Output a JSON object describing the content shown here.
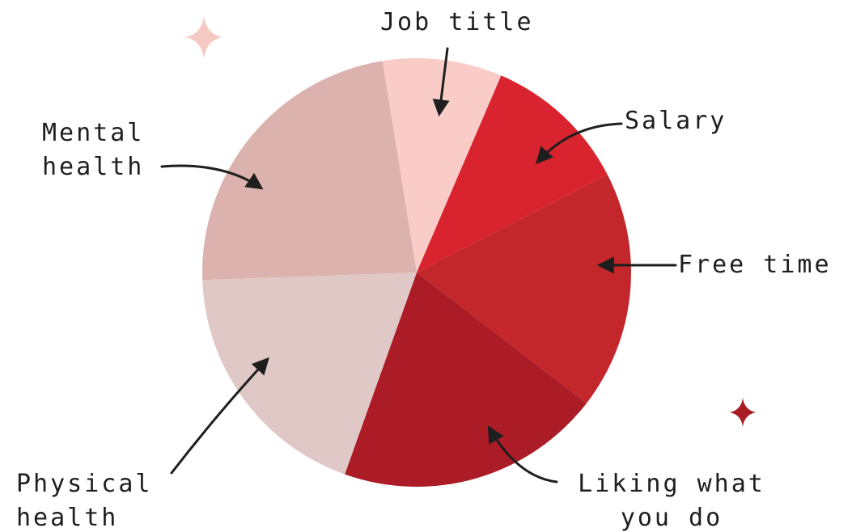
{
  "chart_data": {
    "type": "pie",
    "categories": [
      "Job title",
      "Salary",
      "Free time",
      "Liking what you do",
      "Physical health",
      "Mental health"
    ],
    "values": [
      9,
      11,
      18,
      20,
      19,
      23
    ],
    "colors": [
      "#f9ccc8",
      "#d9232e",
      "#c3272b",
      "#ab1c26",
      "#dfc8c6",
      "#dbb2ad"
    ]
  }
}
